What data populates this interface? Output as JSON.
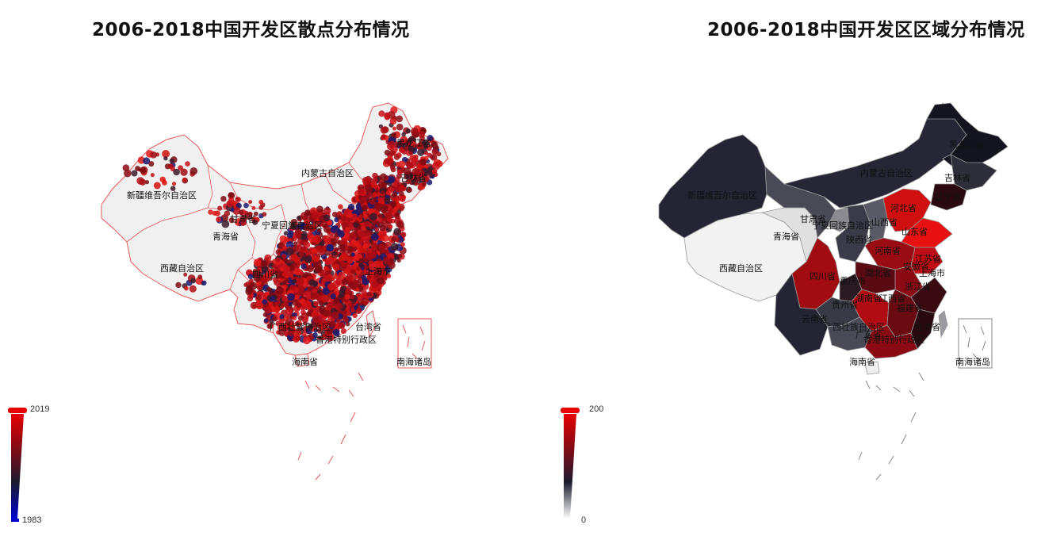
{
  "left_map": {
    "title": "2006-2018中国开发区散点分布情况",
    "legend": {
      "max_label": "2019",
      "min_label": "1983",
      "colors": [
        "#0000cc",
        "#1a1a2e",
        "#8b0a14",
        "#e60000"
      ]
    },
    "province_fill": "#f0f0f0",
    "province_stroke": "#e85a5a",
    "labels": [
      "内蒙古自治区",
      "新疆维吾尔自治区",
      "甘肃省",
      "青海省",
      "西藏自治区",
      "四川省",
      "台湾省",
      "南海诸岛",
      "海南省",
      "广西壮族自治区",
      "上海市",
      "黑龙江省",
      "吉林省",
      "宁夏回族自治区",
      "香港特别行政区"
    ]
  },
  "right_map": {
    "title": "2006-2018中国开发区区域分布情况",
    "legend": {
      "max_label": "200",
      "min_label": "0",
      "colors": [
        "#ffffff",
        "#1a1a2e",
        "#8b0a14",
        "#e60000"
      ]
    },
    "labels": [
      "黑龙江省",
      "吉林省",
      "内蒙古自治区",
      "新疆维吾尔自治区",
      "辽宁省",
      "甘肃省",
      "青海省",
      "宁夏回族自治区",
      "陕西省",
      "山西省",
      "河北省",
      "山东省",
      "河南省",
      "江苏省",
      "安徽省",
      "上海市",
      "西藏自治区",
      "四川省",
      "湖北省",
      "重庆市",
      "浙江省",
      "湖南省",
      "江西省",
      "贵州省",
      "福建省",
      "云南省",
      "广西壮族自治区",
      "广东省",
      "台湾省",
      "香港特别行政区",
      "海南省",
      "南海诸岛"
    ]
  }
}
